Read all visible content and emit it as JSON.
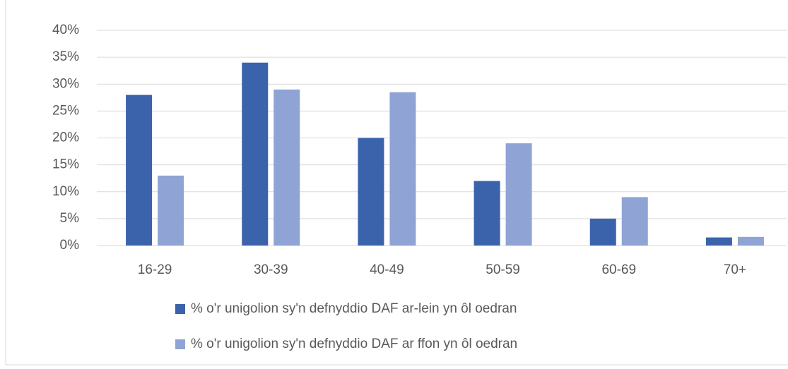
{
  "chart_data": {
    "type": "bar",
    "categories": [
      "16-29",
      "30-39",
      "40-49",
      "50-59",
      "60-69",
      "70+"
    ],
    "series": [
      {
        "name": "% o'r unigolion sy'n defnyddio DAF ar-lein yn ôl oedran",
        "color": "#3a63ac",
        "values": [
          28,
          34,
          20,
          12,
          5,
          1.5
        ]
      },
      {
        "name": "% o'r unigolion sy'n defnyddio DAF ar ffon yn ôl oedran",
        "color": "#8fa4d5",
        "values": [
          13,
          29,
          28.5,
          19,
          9,
          1.6
        ]
      }
    ],
    "ylim": [
      0,
      40
    ],
    "yticks": [
      {
        "value": 0,
        "label": "0%"
      },
      {
        "value": 5,
        "label": "5%"
      },
      {
        "value": 10,
        "label": "10%"
      },
      {
        "value": 15,
        "label": "15%"
      },
      {
        "value": 20,
        "label": "20%"
      },
      {
        "value": 25,
        "label": "25%"
      },
      {
        "value": 30,
        "label": "30%"
      },
      {
        "value": 35,
        "label": "35%"
      },
      {
        "value": 40,
        "label": "40%"
      }
    ],
    "grid": true,
    "legend": "bottom"
  }
}
